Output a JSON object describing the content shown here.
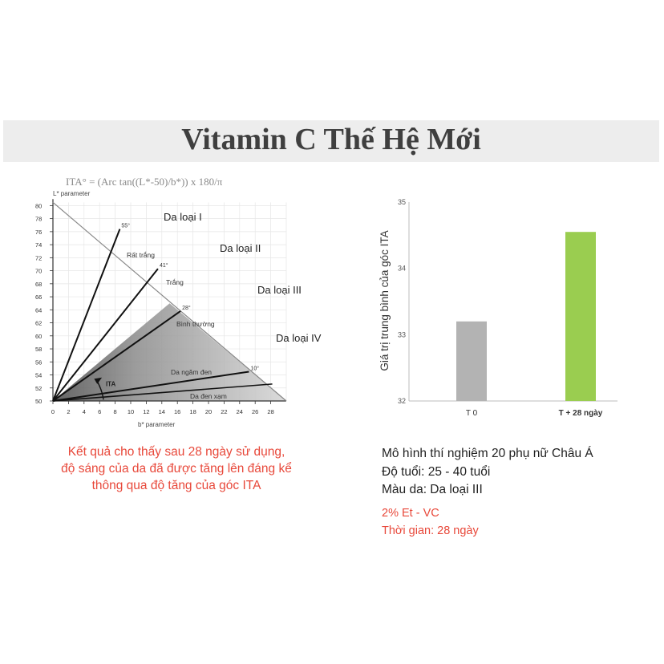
{
  "banner": {
    "title": "Vitamin C Thế Hệ Mới"
  },
  "ita_diagram": {
    "formula": "ITA° = (Arc tan((L*-50)/b*)) x 180/π",
    "y_axis_label": "L* parameter",
    "x_axis_label": "b* parameter",
    "y_ticks": [
      "80",
      "78",
      "76",
      "74",
      "72",
      "70",
      "68",
      "66",
      "64",
      "62",
      "60",
      "58",
      "56",
      "54",
      "52",
      "50"
    ],
    "x_ticks": [
      "0",
      "2",
      "4",
      "6",
      "8",
      "10",
      "12",
      "14",
      "16",
      "18",
      "20",
      "22",
      "24",
      "26",
      "28"
    ],
    "angle_labels": [
      "55°",
      "41°",
      "28°",
      "10°"
    ],
    "skin_zone_labels": [
      "Rất trắng",
      "Trắng",
      "Bình thường",
      "Da ngăm đen",
      "Da đen xạm"
    ],
    "skin_type_labels": [
      "Da loại I",
      "Da loại II",
      "Da loại III",
      "Da loại IV"
    ],
    "ita_marker": "ITA"
  },
  "chart_data": {
    "type": "bar",
    "categories": [
      "T 0",
      "T + 28 ngày"
    ],
    "values": [
      33.2,
      34.55
    ],
    "ylabel": "Giá trị trung bình của góc ITA",
    "ylim": [
      32,
      35
    ],
    "y_ticks": [
      "32",
      "33",
      "34",
      "35"
    ],
    "colors": [
      "#b3b3b3",
      "#9acd50"
    ],
    "grid": false
  },
  "caption": {
    "lines": [
      "Kết quả cho thấy sau 28 ngày sử dụng,",
      "độ sáng của da đã được tăng lên đáng kể",
      "thông qua độ tăng của góc ITA"
    ],
    "color": "#e8483a"
  },
  "study": {
    "model": "Mô hình thí nghiệm 20 phụ nữ Châu Á",
    "age": "Độ tuổi: 25 - 40 tuổi",
    "skin": "Màu da:  Da loại III",
    "ingredient": "2% Et - VC",
    "duration": "Thời gian: 28 ngày"
  }
}
